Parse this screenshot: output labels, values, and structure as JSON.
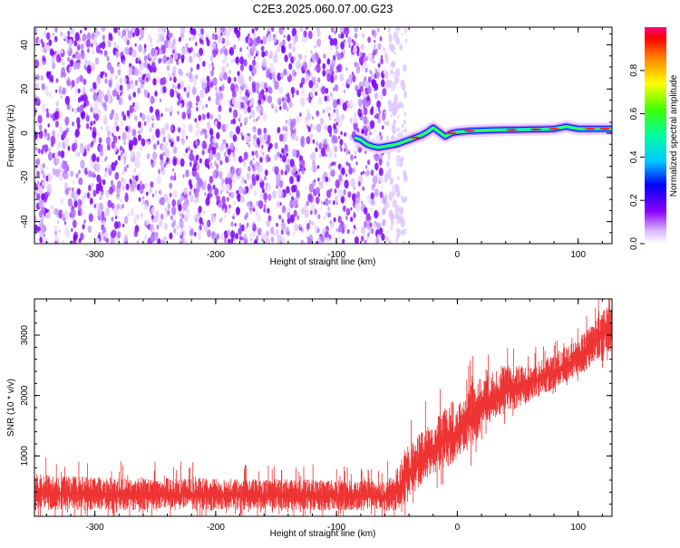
{
  "title": "C2E3.2025.060.07.00.G23",
  "chart_data": [
    {
      "type": "heatmap",
      "title": "C2E3.2025.060.07.00.G23",
      "xlabel": "Height of straight line (km)",
      "ylabel": "Frequency (Hz)",
      "xlim": [
        -350,
        128
      ],
      "ylim": [
        -50,
        48
      ],
      "x_ticks": [
        -300,
        -200,
        -100,
        0,
        100
      ],
      "y_ticks": [
        -40,
        -20,
        0,
        20,
        40
      ],
      "noise_region_x": [
        -350,
        -60
      ],
      "signal_trace": {
        "x": [
          -85,
          -80,
          -75,
          -70,
          -65,
          -60,
          -55,
          -50,
          -45,
          -40,
          -35,
          -30,
          -25,
          -20,
          -15,
          -10,
          -5,
          0,
          10,
          20,
          30,
          40,
          50,
          60,
          70,
          80,
          85,
          90,
          95,
          100,
          110,
          120,
          128
        ],
        "y": [
          -2,
          -3,
          -5,
          -6,
          -6.5,
          -6,
          -5.5,
          -5,
          -4,
          -3,
          -2,
          -1,
          0.5,
          2.5,
          0.5,
          -1.5,
          0,
          0.5,
          1,
          1.2,
          1.4,
          1.5,
          1.6,
          1.7,
          1.8,
          1.9,
          2.5,
          3,
          2.5,
          2,
          2,
          2,
          2
        ]
      },
      "colorbar": {
        "label": "Normalized spectral amplitude",
        "ticks": [
          "0.0",
          "0.2",
          "0.4",
          "0.6",
          "0.8"
        ],
        "range": [
          0,
          1
        ]
      }
    },
    {
      "type": "line",
      "xlabel": "Height of straight line (km)",
      "ylabel": "SNR (10 * v/v)",
      "xlim": [
        -350,
        128
      ],
      "ylim": [
        0,
        3600
      ],
      "x_ticks": [
        -300,
        -200,
        -100,
        0,
        100
      ],
      "y_ticks": [
        1000,
        2000,
        3000
      ],
      "series": [
        {
          "name": "SNR",
          "color": "#ee3333",
          "envelope": {
            "x": [
              -350,
              -300,
              -250,
              -200,
              -150,
              -100,
              -60,
              -50,
              -40,
              -30,
              -20,
              -10,
              0,
              10,
              20,
              30,
              40,
              50,
              60,
              70,
              80,
              90,
              100,
              110,
              120,
              128
            ],
            "low": [
              100,
              100,
              100,
              100,
              100,
              100,
              80,
              100,
              250,
              500,
              700,
              800,
              900,
              1100,
              1400,
              1600,
              1700,
              1800,
              1900,
              2000,
              2100,
              2200,
              2300,
              2500,
              2650,
              2750
            ],
            "high": [
              700,
              650,
              650,
              620,
              620,
              600,
              600,
              800,
              1200,
              1400,
              1600,
              1800,
              1800,
              2200,
              2300,
              2400,
              2500,
              2500,
              2500,
              2600,
              2700,
              2800,
              2950,
              3150,
              3400,
              3550
            ]
          }
        }
      ]
    }
  ]
}
